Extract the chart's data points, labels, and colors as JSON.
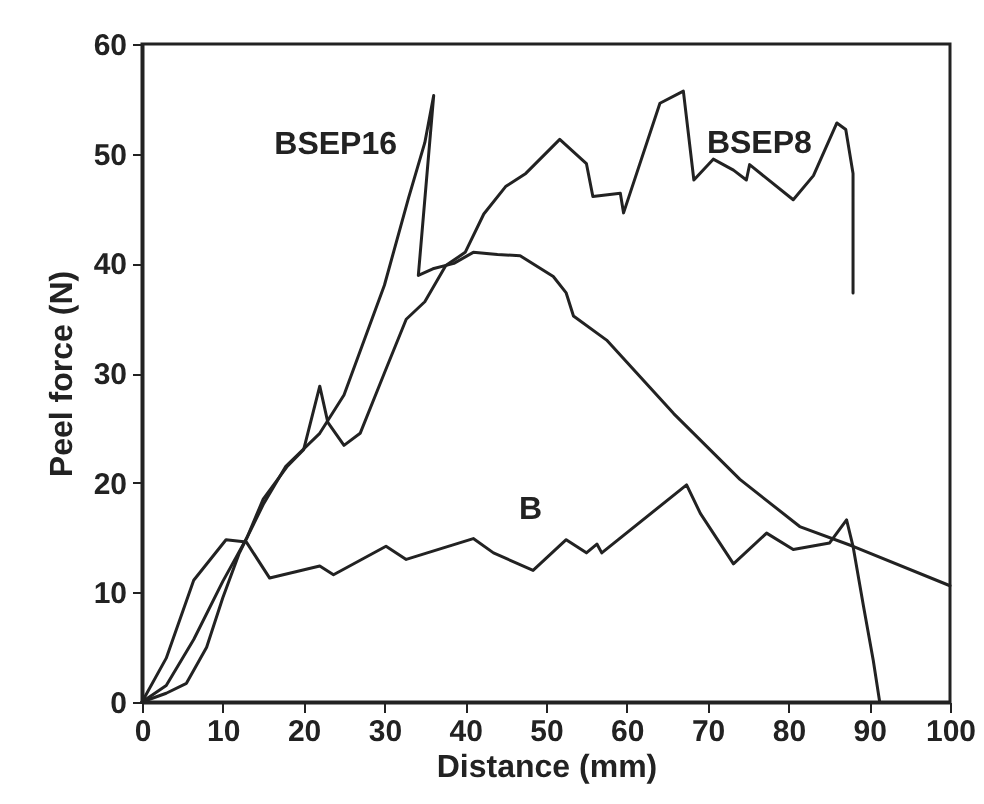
{
  "chart_data": {
    "type": "line",
    "xlabel": "Distance (mm)",
    "ylabel": "Peel force (N)",
    "xlim": [
      0,
      100
    ],
    "ylim": [
      0,
      60
    ],
    "xticks": [
      0,
      10,
      20,
      30,
      40,
      50,
      60,
      70,
      80,
      90,
      100
    ],
    "yticks": [
      0,
      10,
      20,
      30,
      40,
      50,
      60
    ],
    "grid": false,
    "marker": "none",
    "line_style": "solid",
    "series": [
      {
        "name": "BSEP16",
        "color": "#222222",
        "x": [
          0,
          3,
          5.5,
          8,
          10,
          12,
          15,
          17.8,
          22,
          25,
          30,
          33,
          35,
          36.1,
          34.2,
          36,
          38.6,
          41,
          44,
          46.8,
          50.9,
          52.5,
          53.4,
          57.5,
          65.8,
          74,
          81.4,
          88,
          100
        ],
        "values": [
          0,
          0.8,
          1.7,
          5,
          9.5,
          13.5,
          18,
          21.5,
          24.5,
          28,
          38,
          46,
          51,
          55.3,
          38.9,
          39.5,
          40,
          41,
          40.8,
          40.7,
          38.8,
          37.3,
          35.2,
          33,
          26.3,
          20.3,
          16,
          14.2,
          10.6
        ]
      },
      {
        "name": "BSEP8",
        "color": "#222222",
        "x": [
          0,
          3,
          6.4,
          10,
          13,
          15,
          18,
          20,
          22,
          23,
          25,
          27,
          30,
          32.7,
          35,
          37.6,
          40,
          42.3,
          45,
          47.5,
          51.7,
          55,
          55.8,
          59.2,
          59.6,
          64.1,
          67,
          68.3,
          70.7,
          73.2,
          74.8,
          75.2,
          80.6,
          83.1,
          86,
          87.1,
          88,
          88
        ],
        "values": [
          0,
          1.5,
          5.7,
          11,
          15,
          18.5,
          21.5,
          23,
          28.8,
          25.5,
          23.4,
          24.5,
          30,
          34.9,
          36.5,
          39.8,
          41,
          44.5,
          47,
          48.2,
          51.3,
          49.1,
          46.1,
          46.4,
          44.6,
          54.6,
          55.7,
          47.6,
          49.5,
          48.5,
          47.6,
          49,
          45.8,
          48,
          52.8,
          52.2,
          48.2,
          37.3
        ]
      },
      {
        "name": "B",
        "color": "#222222",
        "x": [
          0,
          3,
          6.4,
          10.4,
          12.9,
          15.8,
          22,
          23.7,
          30.2,
          32.7,
          41,
          43.5,
          48.4,
          52.5,
          55,
          56.3,
          56.9,
          67.4,
          69.1,
          73.2,
          77.3,
          80.6,
          85.1,
          87.2,
          88,
          89.3,
          90.5,
          91.3
        ],
        "values": [
          0,
          4,
          11.1,
          14.8,
          14.6,
          11.3,
          12.4,
          11.6,
          14.2,
          13,
          14.9,
          13.6,
          12,
          14.8,
          13.6,
          14.4,
          13.6,
          19.8,
          17.2,
          12.6,
          15.4,
          13.9,
          14.5,
          16.6,
          14.2,
          8.7,
          3.8,
          0
        ]
      }
    ]
  }
}
